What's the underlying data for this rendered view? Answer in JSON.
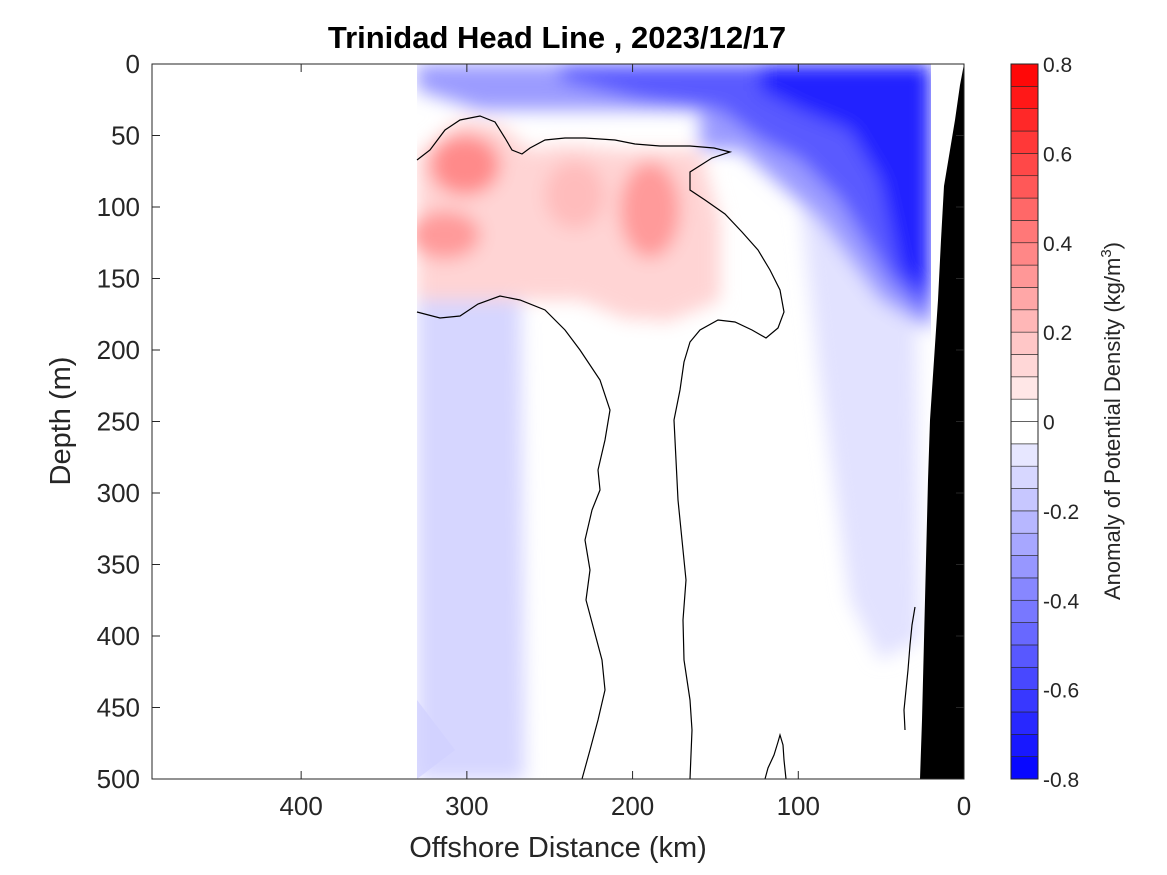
{
  "chart_data": {
    "type": "heatmap",
    "title": "Trinidad Head Line , 2023/12/17",
    "xlabel": "Offshore Distance (km)",
    "ylabel": "Depth (m)",
    "xlim": [
      490,
      0
    ],
    "ylim": [
      0,
      500
    ],
    "x_reversed": true,
    "y_reversed": true,
    "x_ticks": [
      400,
      300,
      200,
      100,
      0
    ],
    "y_ticks": [
      0,
      50,
      100,
      150,
      200,
      250,
      300,
      350,
      400,
      450,
      500
    ],
    "colorbar": {
      "label_main": "Anomaly of Potential Density (kg/m",
      "label_exp": "3",
      "label_end": ")",
      "range": [
        -0.8,
        0.8
      ],
      "step": 0.05,
      "ticks": [
        0.8,
        0.6,
        0.4,
        0.2,
        0,
        -0.2,
        -0.4,
        -0.6,
        -0.8
      ],
      "tick_labels": [
        "0.8",
        "0.6",
        "0.4",
        "0.2",
        "0",
        "-0.2",
        "-0.4",
        "-0.6",
        "-0.8"
      ],
      "colors": {
        "negative": "#0000ff",
        "positive": "#ff0000",
        "zero": "#ffffff"
      }
    },
    "data_extent_km": [
      330,
      20
    ],
    "contour_levels": [
      0
    ],
    "regions": [
      {
        "name": "positive anomaly core 1",
        "x": 300,
        "depth": 75,
        "value": 0.35
      },
      {
        "name": "positive anomaly core 2",
        "x": 300,
        "depth": 120,
        "value": 0.3
      },
      {
        "name": "positive anomaly core 3",
        "x": 190,
        "depth": 100,
        "value": 0.3
      },
      {
        "name": "positive anomaly core 4",
        "x": 240,
        "depth": 90,
        "value": 0.2
      },
      {
        "name": "surface negative anomaly",
        "x": 60,
        "depth": 20,
        "value": -0.7
      },
      {
        "name": "nearshore negative anomaly",
        "x": 40,
        "depth": 110,
        "value": -0.7
      },
      {
        "name": "deep offshore negative anomaly",
        "x": 310,
        "depth": 350,
        "value": -0.1
      }
    ],
    "bathymetry_color": "#000000"
  }
}
